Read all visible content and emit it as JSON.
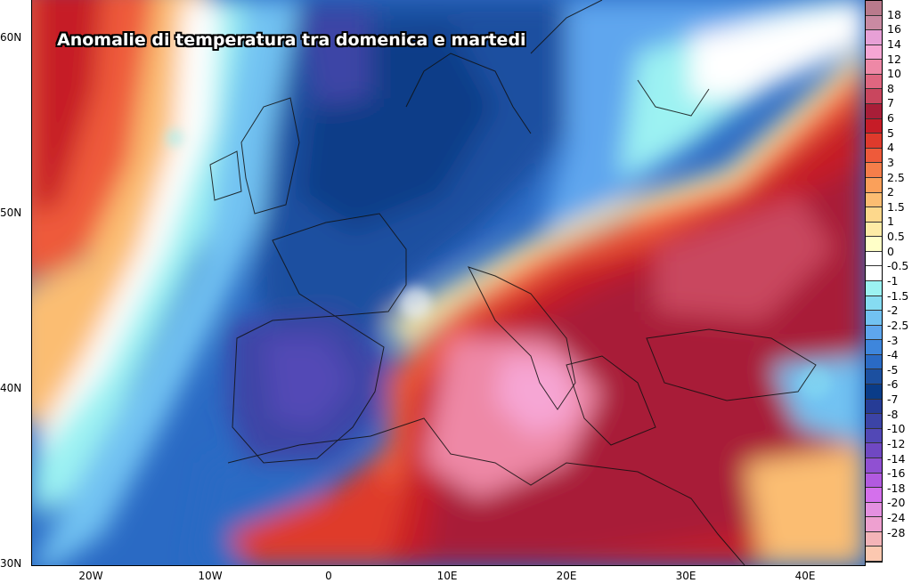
{
  "title": "Anomalie di temperatura tra domenica e martedi",
  "lat_labels": [
    "60N",
    "50N",
    "40N",
    "30N"
  ],
  "lon_labels": [
    "20W",
    "10W",
    "0",
    "10E",
    "20E",
    "30E",
    "40E"
  ],
  "colorbar": {
    "labels": [
      "18",
      "16",
      "14",
      "12",
      "10",
      "8",
      "7",
      "6",
      "5",
      "4",
      "3",
      "2.5",
      "2",
      "1.5",
      "1",
      "0.5",
      "0",
      "-0.5",
      "-1",
      "-1.5",
      "-2",
      "-2.5",
      "-3",
      "-4",
      "-5",
      "-6",
      "-7",
      "-8",
      "-10",
      "-12",
      "-14",
      "-16",
      "-18",
      "-20",
      "-24",
      "-28"
    ],
    "colors": [
      "#b97a8c",
      "#c98aa2",
      "#e7a0d6",
      "#f6a6d4",
      "#ee88a6",
      "#df6680",
      "#c9465e",
      "#a81e38",
      "#c61c27",
      "#df3a2c",
      "#ee5a3a",
      "#f57e4a",
      "#faa05a",
      "#fbbd72",
      "#fdd88c",
      "#fdeba6",
      "#ffffc8",
      "#ffffff",
      "#ffffff",
      "#9cf2f2",
      "#86dcf2",
      "#72c2f2",
      "#5ea6ee",
      "#3e86dc",
      "#2a6ac4",
      "#1c50a0",
      "#0a3c88",
      "#263c96",
      "#3c44a6",
      "#5248b6",
      "#7048c2",
      "#9050d2",
      "#b25ae0",
      "#d470ec",
      "#e490e0",
      "#eea0d0",
      "#f4b4b8",
      "#fcc8b0"
    ]
  }
}
